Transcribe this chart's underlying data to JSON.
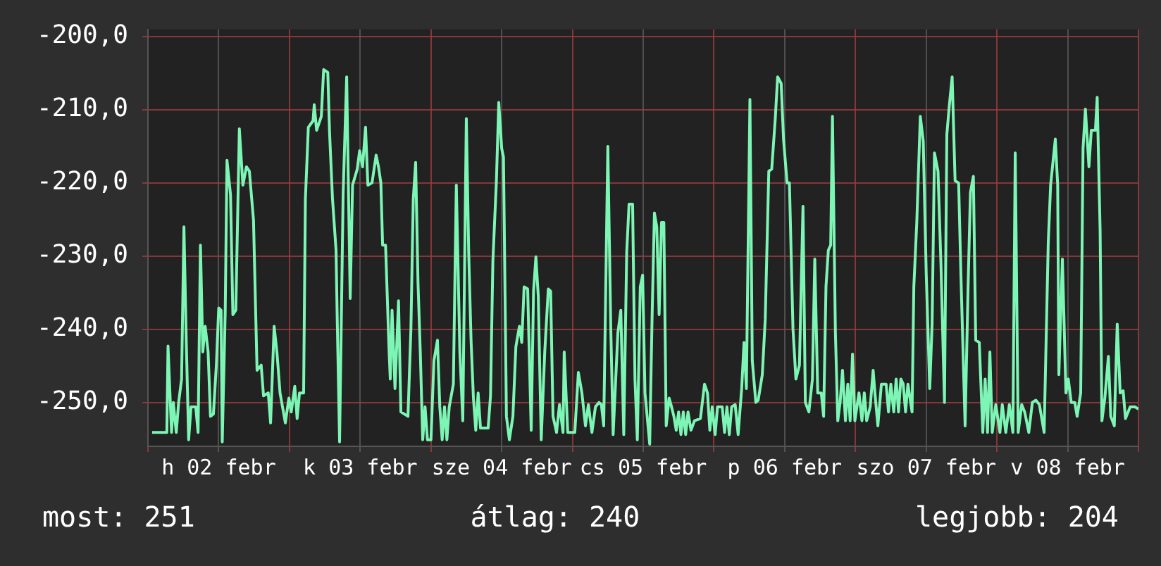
{
  "chart_data": {
    "type": "line",
    "legend": false,
    "grid": true,
    "xlim": [
      "--02-02T00:00",
      "--02-09T00:00"
    ],
    "ylim": [
      -256,
      -199
    ],
    "xticks": [
      {
        "value": "--02-02T00:00",
        "label": null
      },
      {
        "value": "--02-02T12:00",
        "label": "h 02 febr"
      },
      {
        "value": "--02-03T00:00",
        "label": null
      },
      {
        "value": "--02-03T12:00",
        "label": "k 03 febr"
      },
      {
        "value": "--02-04T00:00",
        "label": null
      },
      {
        "value": "--02-04T12:00",
        "label": "sze 04 febr"
      },
      {
        "value": "--02-05T00:00",
        "label": null
      },
      {
        "value": "--02-05T12:00",
        "label": "cs 05 febr"
      },
      {
        "value": "--02-06T00:00",
        "label": null
      },
      {
        "value": "--02-06T12:00",
        "label": "p 06 febr"
      },
      {
        "value": "--02-07T00:00",
        "label": null
      },
      {
        "value": "--02-07T12:00",
        "label": "szo 07 febr"
      },
      {
        "value": "--02-08T00:00",
        "label": null
      },
      {
        "value": "--02-08T12:00",
        "label": "v 08 febr"
      },
      {
        "value": "--02-09T00:00",
        "label": null
      }
    ],
    "yticks": [
      {
        "value": -250,
        "label": "-250,0"
      },
      {
        "value": -240,
        "label": "-240,0"
      },
      {
        "value": -230,
        "label": "-230,0"
      },
      {
        "value": -220,
        "label": "-220,0"
      },
      {
        "value": -210,
        "label": "-210,0"
      },
      {
        "value": -200,
        "label": "-200,0"
      }
    ],
    "annotations": [
      "most: 251",
      "átlag: 240",
      "legjobb: 204"
    ],
    "series": [
      {
        "color": "#7df5b4",
        "x": [
          "--02-02T00:42",
          "--02-02T03:12",
          "--02-02T03:24",
          "--02-02T04:00",
          "--02-02T04:18",
          "--02-02T04:48",
          "--02-02T05:12",
          "--02-02T05:42",
          "--02-02T06:06",
          "--02-02T06:30",
          "--02-02T06:54",
          "--02-02T07:18",
          "--02-02T08:06",
          "--02-02T08:30",
          "--02-02T08:54",
          "--02-02T09:18",
          "--02-02T09:42",
          "--02-02T10:12",
          "--02-02T10:36",
          "--02-02T11:06",
          "--02-02T11:36",
          "--02-02T12:00",
          "--02-02T12:24",
          "--02-02T12:36",
          "--02-02T13:06",
          "--02-02T13:24",
          "--02-02T14:00",
          "--02-02T14:24",
          "--02-02T14:54",
          "--02-02T15:30",
          "--02-02T16:06",
          "--02-02T16:42",
          "--02-02T17:12",
          "--02-02T17:54",
          "--02-02T18:30",
          "--02-02T19:12",
          "--02-02T19:36",
          "--02-02T20:24",
          "--02-02T20:48",
          "--02-02T21:24",
          "--02-02T21:54",
          "--02-02T22:24",
          "--02-02T23:18",
          "--02-02T23:54",
          "--02-03T00:18",
          "--02-03T00:54",
          "--02-03T01:18",
          "--02-03T01:42",
          "--02-03T02:24",
          "--02-03T02:42",
          "--02-03T03:12",
          "--02-03T04:00",
          "--02-03T04:12",
          "--02-03T04:36",
          "--02-03T05:24",
          "--02-03T05:48",
          "--02-03T06:30",
          "--02-03T06:48",
          "--02-03T07:18",
          "--02-03T07:54",
          "--02-03T08:06",
          "--02-03T08:30",
          "--02-03T09:06",
          "--02-03T09:42",
          "--02-03T10:18",
          "--02-03T10:42",
          "--02-03T11:30",
          "--02-03T11:54",
          "--02-03T12:24",
          "--02-03T12:54",
          "--02-03T13:18",
          "--02-03T14:00",
          "--02-03T14:42",
          "--02-03T15:06",
          "--02-03T15:30",
          "--02-03T15:48",
          "--02-03T16:18",
          "--02-03T16:54",
          "--02-03T17:06",
          "--02-03T17:24",
          "--02-03T17:54",
          "--02-03T18:30",
          "--02-03T18:54",
          "--02-03T20:06",
          "--02-03T20:36",
          "--02-03T21:00",
          "--02-03T21:24",
          "--02-03T21:48",
          "--02-03T22:12",
          "--02-03T22:36",
          "--02-03T23:00",
          "--02-03T23:24",
          "--02-04T00:00",
          "--02-04T00:30",
          "--02-04T01:06",
          "--02-04T01:30",
          "--02-04T01:54",
          "--02-04T02:18",
          "--02-04T02:42",
          "--02-04T03:06",
          "--02-04T03:48",
          "--02-04T04:18",
          "--02-04T04:54",
          "--02-04T05:24",
          "--02-04T06:00",
          "--02-04T06:24",
          "--02-04T06:48",
          "--02-04T07:12",
          "--02-04T07:36",
          "--02-04T08:00",
          "--02-04T08:24",
          "--02-04T09:42",
          "--02-04T10:06",
          "--02-04T10:30",
          "--02-04T11:06",
          "--02-04T11:30",
          "--02-04T12:00",
          "--02-04T12:18",
          "--02-04T12:48",
          "--02-04T13:18",
          "--02-04T13:54",
          "--02-04T14:24",
          "--02-04T15:00",
          "--02-04T15:24",
          "--02-04T15:48",
          "--02-04T16:24",
          "--02-04T17:00",
          "--02-04T17:24",
          "--02-04T17:48",
          "--02-04T18:12",
          "--02-04T18:42",
          "--02-04T19:18",
          "--02-04T19:54",
          "--02-04T20:18",
          "--02-04T20:42",
          "--02-04T21:18",
          "--02-04T21:48",
          "--02-04T22:24",
          "--02-04T22:36",
          "--02-04T23:12",
          "--02-05T00:24",
          "--02-05T01:00",
          "--02-05T01:36",
          "--02-05T02:12",
          "--02-05T02:42",
          "--02-05T03:18",
          "--02-05T03:54",
          "--02-05T04:30",
          "--02-05T04:54",
          "--02-05T05:18",
          "--02-05T06:00",
          "--02-05T06:30",
          "--02-05T06:54",
          "--02-05T07:42",
          "--02-05T08:12",
          "--02-05T08:42",
          "--02-05T09:12",
          "--02-05T09:36",
          "--02-05T10:12",
          "--02-05T10:36",
          "--02-05T11:00",
          "--02-05T11:30",
          "--02-05T11:54",
          "--02-05T12:18",
          "--02-05T13:06",
          "--02-05T13:30",
          "--02-05T13:54",
          "--02-05T14:18",
          "--02-05T14:42",
          "--02-05T15:06",
          "--02-05T15:30",
          "--02-05T15:54",
          "--02-05T16:24",
          "--02-05T16:48",
          "--02-05T17:12",
          "--02-05T17:36",
          "--02-05T18:00",
          "--02-05T18:24",
          "--02-05T18:48",
          "--02-05T19:12",
          "--02-05T19:36",
          "--02-05T20:06",
          "--02-05T20:42",
          "--02-05T21:42",
          "--02-05T22:24",
          "--02-05T22:54",
          "--02-05T23:18",
          "--02-05T23:42",
          "--02-06T00:12",
          "--02-06T00:36",
          "--02-06T01:24",
          "--02-06T01:48",
          "--02-06T02:12",
          "--02-06T02:36",
          "--02-06T03:00",
          "--02-06T03:36",
          "--02-06T04:06",
          "--02-06T04:42",
          "--02-06T05:06",
          "--02-06T05:30",
          "--02-06T06:06",
          "--02-06T06:30",
          "--02-06T07:06",
          "--02-06T07:30",
          "--02-06T08:12",
          "--02-06T08:42",
          "--02-06T09:18",
          "--02-06T09:48",
          "--02-06T10:24",
          "--02-06T10:48",
          "--02-06T11:24",
          "--02-06T11:48",
          "--02-06T12:24",
          "--02-06T12:48",
          "--02-06T13:24",
          "--02-06T13:54",
          "--02-06T14:30",
          "--02-06T15:06",
          "--02-06T15:30",
          "--02-06T16:06",
          "--02-06T16:42",
          "--02-06T17:06",
          "--02-06T17:36",
          "--02-06T18:12",
          "--02-06T18:36",
          "--02-06T19:00",
          "--02-06T19:24",
          "--02-06T19:48",
          "--02-06T20:06",
          "--02-06T20:36",
          "--02-06T21:00",
          "--02-06T21:24",
          "--02-06T21:48",
          "--02-06T22:18",
          "--02-06T22:42",
          "--02-06T23:06",
          "--02-06T23:30",
          "--02-06T23:54",
          "--02-07T00:36",
          "--02-07T01:06",
          "--02-07T01:30",
          "--02-07T01:54",
          "--02-07T02:30",
          "--02-07T03:00",
          "--02-07T03:18",
          "--02-07T03:48",
          "--02-07T04:24",
          "--02-07T05:12",
          "--02-07T05:36",
          "--02-07T06:00",
          "--02-07T06:30",
          "--02-07T06:54",
          "--02-07T07:18",
          "--02-07T07:42",
          "--02-07T08:06",
          "--02-07T08:30",
          "--02-07T08:54",
          "--02-07T09:36",
          "--02-07T09:54",
          "--02-07T10:24",
          "--02-07T11:00",
          "--02-07T11:30",
          "--02-07T12:00",
          "--02-07T12:36",
          "--02-07T13:00",
          "--02-07T13:24",
          "--02-07T14:00",
          "--02-07T14:30",
          "--02-07T15:06",
          "--02-07T15:30",
          "--02-07T15:54",
          "--02-07T16:24",
          "--02-07T16:54",
          "--02-07T17:30",
          "--02-07T17:54",
          "--02-07T18:36",
          "--02-07T19:06",
          "--02-07T19:30",
          "--02-07T20:00",
          "--02-07T20:24",
          "--02-07T21:00",
          "--02-07T21:36",
          "--02-07T22:00",
          "--02-07T22:24",
          "--02-07T22:48",
          "--02-07T23:12",
          "--02-07T23:48",
          "--02-08T00:30",
          "--02-08T00:54",
          "--02-08T01:30",
          "--02-08T02:06",
          "--02-08T02:42",
          "--02-08T03:06",
          "--02-08T03:36",
          "--02-08T04:12",
          "--02-08T04:42",
          "--02-08T05:24",
          "--02-08T06:00",
          "--02-08T06:36",
          "--02-08T07:12",
          "--02-08T08:00",
          "--02-08T08:42",
          "--02-08T09:06",
          "--02-08T09:54",
          "--02-08T10:18",
          "--02-08T10:30",
          "--02-08T11:06",
          "--02-08T11:42",
          "--02-08T12:06",
          "--02-08T12:36",
          "--02-08T13:12",
          "--02-08T13:36",
          "--02-08T14:12",
          "--02-08T14:36",
          "--02-08T15:00",
          "--02-08T15:36",
          "--02-08T16:00",
          "--02-08T16:42",
          "--02-08T17:00",
          "--02-08T17:30",
          "--02-08T17:48",
          "--02-08T18:18",
          "--02-08T18:54",
          "--02-08T19:18",
          "--02-08T19:54",
          "--02-08T20:24",
          "--02-08T20:54",
          "--02-08T21:24",
          "--02-08T21:48",
          "--02-08T22:36",
          "--02-08T23:24",
          "--02-09T00:00"
        ],
        "values": [
          -254.1,
          -254.1,
          -242.3,
          -254.1,
          -250.0,
          -254.1,
          -250.0,
          -246.8,
          -226.0,
          -241.8,
          -255.1,
          -250.6,
          -250.6,
          -254.1,
          -228.5,
          -243.1,
          -239.6,
          -243.1,
          -251.9,
          -251.6,
          -244.9,
          -237.1,
          -237.4,
          -255.4,
          -237.7,
          -216.9,
          -221.6,
          -238.0,
          -237.4,
          -212.6,
          -220.3,
          -217.8,
          -218.4,
          -225.1,
          -245.6,
          -244.9,
          -249.1,
          -248.7,
          -252.8,
          -239.6,
          -243.4,
          -248.7,
          -252.8,
          -249.4,
          -251.3,
          -247.8,
          -252.2,
          -248.7,
          -248.7,
          -222.2,
          -212.4,
          -211.5,
          -209.3,
          -212.8,
          -210.9,
          -204.5,
          -204.9,
          -213.1,
          -222.2,
          -229.2,
          -238.6,
          -255.4,
          -221.6,
          -205.5,
          -235.8,
          -220.3,
          -218.1,
          -215.6,
          -217.8,
          -212.4,
          -220.3,
          -220.0,
          -216.2,
          -217.8,
          -220.0,
          -228.5,
          -228.5,
          -243.1,
          -246.8,
          -237.4,
          -248.1,
          -236.1,
          -251.3,
          -251.9,
          -239.9,
          -222.2,
          -217.2,
          -233.6,
          -243.4,
          -255.1,
          -250.6,
          -255.1,
          -255.1,
          -244.3,
          -241.5,
          -250.6,
          -255.1,
          -250.6,
          -255.1,
          -250.6,
          -247.5,
          -220.3,
          -243.1,
          -252.5,
          -211.2,
          -229.5,
          -241.5,
          -249.4,
          -253.8,
          -248.7,
          -253.5,
          -253.5,
          -249.1,
          -230.7,
          -219.7,
          -209.0,
          -215.3,
          -216.5,
          -251.9,
          -255.1,
          -251.9,
          -242.4,
          -239.6,
          -241.8,
          -234.2,
          -234.5,
          -253.8,
          -234.8,
          -230.1,
          -235.5,
          -255.1,
          -243.1,
          -234.5,
          -234.8,
          -251.9,
          -254.1,
          -250.3,
          -254.1,
          -243.1,
          -254.1,
          -254.1,
          -245.9,
          -248.7,
          -253.2,
          -250.3,
          -254.1,
          -250.6,
          -250.0,
          -250.3,
          -253.2,
          -215.0,
          -239.9,
          -254.4,
          -240.5,
          -237.4,
          -254.4,
          -229.5,
          -222.9,
          -222.9,
          -246.8,
          -255.1,
          -234.2,
          -232.6,
          -248.7,
          -255.7,
          -238.6,
          -224.1,
          -226.0,
          -238.0,
          -225.4,
          -225.4,
          -253.2,
          -249.4,
          -250.6,
          -251.9,
          -253.8,
          -251.3,
          -254.4,
          -251.3,
          -254.4,
          -251.3,
          -253.8,
          -252.5,
          -252.2,
          -247.5,
          -248.7,
          -253.8,
          -250.6,
          -254.4,
          -250.6,
          -250.6,
          -254.1,
          -250.6,
          -254.4,
          -250.6,
          -250.3,
          -254.4,
          -248.1,
          -241.8,
          -248.1,
          -208.6,
          -244.3,
          -250.0,
          -249.7,
          -246.2,
          -238.6,
          -218.4,
          -218.1,
          -211.2,
          -205.5,
          -206.4,
          -214.0,
          -220.0,
          -220.0,
          -239.9,
          -246.8,
          -244.9,
          -223.2,
          -250.0,
          -251.3,
          -246.8,
          -230.4,
          -248.7,
          -248.7,
          -251.9,
          -234.2,
          -229.2,
          -228.5,
          -210.9,
          -240.5,
          -252.5,
          -250.0,
          -245.6,
          -252.5,
          -247.5,
          -252.5,
          -243.4,
          -252.5,
          -248.7,
          -252.5,
          -248.7,
          -252.5,
          -250.6,
          -245.6,
          -248.7,
          -253.2,
          -247.5,
          -247.5,
          -251.3,
          -247.5,
          -251.3,
          -246.8,
          -251.3,
          -246.8,
          -247.5,
          -251.3,
          -247.5,
          -251.3,
          -234.2,
          -225.4,
          -210.9,
          -214.3,
          -232.3,
          -248.1,
          -239.3,
          -215.9,
          -218.4,
          -231.1,
          -250.0,
          -213.4,
          -209.6,
          -205.5,
          -219.7,
          -220.0,
          -233.0,
          -253.2,
          -234.2,
          -221.3,
          -219.1,
          -241.5,
          -241.8,
          -254.1,
          -246.8,
          -254.1,
          -243.1,
          -254.1,
          -250.3,
          -254.1,
          -250.3,
          -254.1,
          -250.3,
          -254.1,
          -215.9,
          -254.1,
          -250.3,
          -251.3,
          -254.1,
          -250.0,
          -249.7,
          -250.3,
          -254.1,
          -228.2,
          -220.3,
          -214.0,
          -220.3,
          -246.2,
          -230.4,
          -248.7,
          -246.8,
          -250.0,
          -250.0,
          -251.9,
          -248.7,
          -215.3,
          -209.9,
          -217.8,
          -212.8,
          -212.8,
          -208.3,
          -226.6,
          -252.5,
          -249.4,
          -243.7,
          -251.9,
          -253.2,
          -239.3,
          -248.7,
          -248.4,
          -252.2,
          -250.6,
          -250.6,
          -250.9
        ]
      }
    ]
  }
}
